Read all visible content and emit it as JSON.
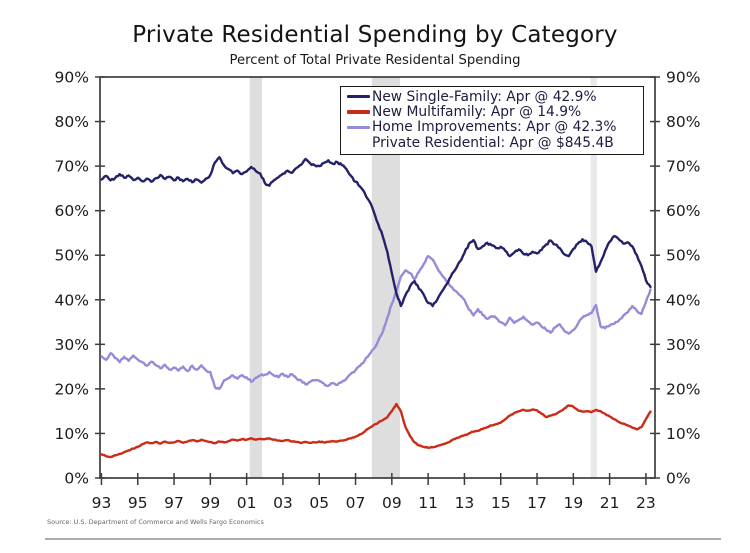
{
  "title": "Private Residential Spending by Category",
  "subtitle": "Percent of Total Private Residental Spending",
  "source": "Source: U.S. Department of Commerce and Wells Fargo Economics",
  "legend": {
    "items": [
      {
        "label": "New Single-Family: Apr @ 42.9%",
        "color": "#252168",
        "swatch": true
      },
      {
        "label": "New Multifamily: Apr @ 14.9%",
        "color": "#cc2b17",
        "swatch": true
      },
      {
        "label": "Home Improvements: Apr @ 42.3%",
        "color": "#948cd8",
        "swatch": true
      },
      {
        "label": "Private Residential: Apr @ $845.4B",
        "color": null,
        "swatch": false
      }
    ]
  },
  "chart_data": {
    "type": "line",
    "title": "Private Residential Spending by Category",
    "subtitle": "Percent of Total Private Residental Spending",
    "grid": false,
    "legend_position": "top-right-inside",
    "y_axis": {
      "min": 0,
      "max": 90,
      "tick_step": 10,
      "unit": "%",
      "sides": [
        "left",
        "right"
      ]
    },
    "x_axis": {
      "min": 1992.92,
      "max": 2023.5,
      "ticks": [
        {
          "year": 1993,
          "label": "93"
        },
        {
          "year": 1995,
          "label": "95"
        },
        {
          "year": 1997,
          "label": "97"
        },
        {
          "year": 1999,
          "label": "99"
        },
        {
          "year": 2001,
          "label": "01"
        },
        {
          "year": 2003,
          "label": "03"
        },
        {
          "year": 2005,
          "label": "05"
        },
        {
          "year": 2007,
          "label": "07"
        },
        {
          "year": 2009,
          "label": "09"
        },
        {
          "year": 2011,
          "label": "11"
        },
        {
          "year": 2013,
          "label": "13"
        },
        {
          "year": 2015,
          "label": "15"
        },
        {
          "year": 2017,
          "label": "17"
        },
        {
          "year": 2019,
          "label": "19"
        },
        {
          "year": 2021,
          "label": "21"
        },
        {
          "year": 2023,
          "label": "23"
        }
      ]
    },
    "recession_bands": [
      {
        "start": 2001.17,
        "end": 2001.85,
        "color": "#dedede"
      },
      {
        "start": 2007.9,
        "end": 2009.45,
        "color": "#dedede"
      },
      {
        "start": 2019.95,
        "end": 2020.3,
        "color": "#e9e9e9"
      }
    ],
    "series": [
      {
        "name": "New Single-Family",
        "color": "#252168",
        "x_start": 1993,
        "x_step": 0.25,
        "jitter": 0.5,
        "values": [
          67.0,
          67.8,
          66.8,
          67.3,
          68.2,
          67.4,
          67.9,
          66.9,
          67.4,
          66.6,
          67.2,
          66.5,
          67.3,
          68.0,
          67.1,
          67.6,
          66.8,
          67.4,
          66.6,
          67.1,
          66.4,
          67.0,
          66.3,
          67.2,
          68.0,
          70.8,
          72.0,
          70.2,
          69.3,
          68.4,
          69.0,
          68.2,
          68.8,
          69.8,
          68.9,
          68.3,
          66.2,
          65.6,
          66.8,
          67.5,
          68.3,
          69.0,
          68.5,
          69.6,
          70.3,
          71.6,
          70.6,
          70.2,
          70.0,
          70.7,
          71.3,
          70.5,
          70.9,
          70.2,
          69.3,
          67.8,
          66.5,
          65.4,
          64.0,
          62.2,
          59.8,
          57.0,
          54.2,
          50.8,
          46.0,
          41.5,
          38.6,
          41.0,
          43.0,
          44.2,
          42.4,
          41.2,
          39.3,
          38.6,
          40.0,
          41.8,
          43.4,
          45.2,
          46.8,
          48.6,
          50.5,
          52.6,
          53.4,
          51.4,
          52.0,
          52.8,
          52.2,
          51.6,
          51.9,
          51.0,
          49.8,
          50.6,
          51.3,
          50.3,
          50.0,
          50.8,
          50.4,
          51.2,
          52.4,
          53.3,
          52.4,
          51.6,
          50.2,
          49.8,
          51.4,
          52.6,
          53.6,
          53.0,
          52.0,
          46.3,
          48.5,
          51.0,
          53.0,
          54.3,
          53.6,
          52.6,
          52.9,
          52.0,
          50.0,
          47.6,
          44.4,
          42.9
        ]
      },
      {
        "name": "New Multifamily",
        "color": "#cc2b17",
        "x_start": 1993,
        "x_step": 0.25,
        "jitter": 0.2,
        "values": [
          5.3,
          4.9,
          4.7,
          5.1,
          5.4,
          5.8,
          6.2,
          6.6,
          7.0,
          7.6,
          8.0,
          7.8,
          8.1,
          7.7,
          8.2,
          7.9,
          8.0,
          8.3,
          7.9,
          8.2,
          8.5,
          8.2,
          8.6,
          8.3,
          8.1,
          7.8,
          8.2,
          8.0,
          8.3,
          8.6,
          8.4,
          8.7,
          8.6,
          8.9,
          8.6,
          8.8,
          8.7,
          8.9,
          8.6,
          8.4,
          8.3,
          8.5,
          8.2,
          8.1,
          7.8,
          8.1,
          7.9,
          8.0,
          8.2,
          8.0,
          8.1,
          8.3,
          8.2,
          8.4,
          8.6,
          8.9,
          9.3,
          9.8,
          10.4,
          11.2,
          11.9,
          12.4,
          13.0,
          13.6,
          15.0,
          16.6,
          15.0,
          11.5,
          9.4,
          8.0,
          7.3,
          7.0,
          6.8,
          6.9,
          7.2,
          7.5,
          7.8,
          8.3,
          8.8,
          9.2,
          9.6,
          10.0,
          10.4,
          10.6,
          11.0,
          11.4,
          11.8,
          12.1,
          12.4,
          13.2,
          14.0,
          14.6,
          15.0,
          15.3,
          15.1,
          15.4,
          15.2,
          14.4,
          13.7,
          14.0,
          14.3,
          14.9,
          15.6,
          16.3,
          16.0,
          15.2,
          14.9,
          15.0,
          14.8,
          15.3,
          15.0,
          14.4,
          13.8,
          13.2,
          12.6,
          12.2,
          11.8,
          11.3,
          10.9,
          11.4,
          13.2,
          14.9
        ]
      },
      {
        "name": "Home Improvements",
        "color": "#948cd8",
        "x_start": 1993,
        "x_step": 0.25,
        "jitter": 0.45,
        "values": [
          27.3,
          26.5,
          28.0,
          26.9,
          26.0,
          27.2,
          26.3,
          27.5,
          26.6,
          26.0,
          25.2,
          26.1,
          25.3,
          24.6,
          25.4,
          24.3,
          24.8,
          24.1,
          25.0,
          24.0,
          25.2,
          24.3,
          25.3,
          24.2,
          23.8,
          20.4,
          20.0,
          21.9,
          22.4,
          23.0,
          22.3,
          23.1,
          22.6,
          21.6,
          22.5,
          23.0,
          23.2,
          23.8,
          23.0,
          22.6,
          23.4,
          22.7,
          23.3,
          22.3,
          21.9,
          21.0,
          21.6,
          21.9,
          21.8,
          21.2,
          20.7,
          21.3,
          20.9,
          21.6,
          22.3,
          23.4,
          24.2,
          25.2,
          26.3,
          27.7,
          29.0,
          30.8,
          32.8,
          36.0,
          39.0,
          42.0,
          45.2,
          46.6,
          46.0,
          44.6,
          46.3,
          48.0,
          49.8,
          49.0,
          47.2,
          45.6,
          44.2,
          43.0,
          42.0,
          41.0,
          40.0,
          37.8,
          36.5,
          37.9,
          36.6,
          35.7,
          36.3,
          35.9,
          35.0,
          34.3,
          36.0,
          34.8,
          35.5,
          36.2,
          35.2,
          34.4,
          34.9,
          34.0,
          33.3,
          32.6,
          33.8,
          34.5,
          33.0,
          32.4,
          33.2,
          34.6,
          36.0,
          36.6,
          37.0,
          38.8,
          34.0,
          33.6,
          34.2,
          34.6,
          35.3,
          36.4,
          37.2,
          38.6,
          37.5,
          36.8,
          39.5,
          42.3
        ]
      }
    ]
  }
}
